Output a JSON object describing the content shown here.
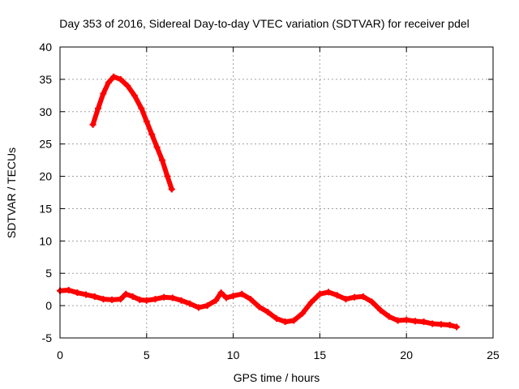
{
  "chart_data": {
    "type": "scatter",
    "title": "Day 353 of 2016, Sidereal Day-to-day VTEC variation (SDTVAR) for receiver pdel",
    "xlabel": "GPS time / hours",
    "ylabel": "SDTVAR / TECUs",
    "xlim": [
      0,
      25
    ],
    "ylim": [
      -5,
      40
    ],
    "x_ticks": [
      0,
      5,
      10,
      15,
      20,
      25
    ],
    "y_ticks": [
      -5,
      0,
      5,
      10,
      15,
      20,
      25,
      30,
      35,
      40
    ],
    "grid": true,
    "legend": "none",
    "series": [
      {
        "name": "high-track",
        "color": "#ff0000",
        "x": [
          1.9,
          2.2,
          2.5,
          2.8,
          3.1,
          3.5,
          3.9,
          4.3,
          4.7,
          5.0,
          5.3,
          5.6,
          5.9,
          6.2,
          6.45
        ],
        "y": [
          28.0,
          30.5,
          32.8,
          34.5,
          35.4,
          35.0,
          34.0,
          32.5,
          30.5,
          28.5,
          26.5,
          24.5,
          22.5,
          20.0,
          18.0
        ]
      },
      {
        "name": "low-track",
        "color": "#ff0000",
        "x": [
          0,
          0.5,
          1.0,
          1.5,
          2.0,
          2.5,
          3.0,
          3.5,
          3.8,
          4.2,
          4.6,
          5.0,
          5.5,
          6.0,
          6.5,
          7.0,
          7.5,
          8.0,
          8.5,
          9.0,
          9.3,
          9.6,
          10.0,
          10.5,
          11.0,
          11.5,
          12.0,
          12.5,
          13.0,
          13.5,
          14.0,
          14.5,
          15.0,
          15.5,
          16.0,
          16.5,
          17.0,
          17.5,
          18.0,
          18.5,
          19.0,
          19.5,
          20.0,
          20.5,
          21.0,
          21.5,
          22.0,
          22.5,
          22.9
        ],
        "y": [
          2.3,
          2.4,
          2.0,
          1.7,
          1.4,
          1.0,
          0.9,
          1.0,
          1.8,
          1.4,
          0.9,
          0.8,
          1.0,
          1.3,
          1.2,
          0.8,
          0.3,
          -0.3,
          0.0,
          0.8,
          2.0,
          1.2,
          1.5,
          1.8,
          1.0,
          -0.2,
          -1.0,
          -2.0,
          -2.5,
          -2.3,
          -1.2,
          0.5,
          1.8,
          2.1,
          1.6,
          1.0,
          1.3,
          1.4,
          0.6,
          -0.7,
          -1.7,
          -2.3,
          -2.2,
          -2.4,
          -2.5,
          -2.8,
          -2.9,
          -3.0,
          -3.3
        ]
      }
    ]
  }
}
